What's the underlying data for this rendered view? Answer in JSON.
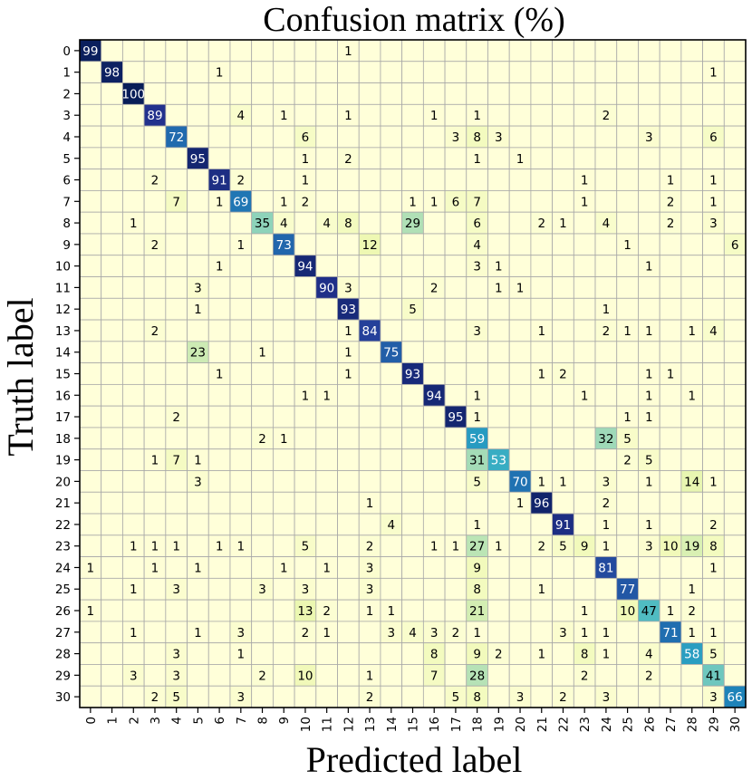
{
  "chart_data": {
    "type": "heatmap",
    "title": "Confusion matrix (%)",
    "xlabel": "Predicted label",
    "ylabel": "Truth label",
    "x_ticks": [
      "0",
      "1",
      "2",
      "3",
      "4",
      "5",
      "6",
      "7",
      "8",
      "9",
      "10",
      "11",
      "12",
      "13",
      "14",
      "15",
      "16",
      "17",
      "18",
      "19",
      "20",
      "21",
      "22",
      "23",
      "24",
      "25",
      "26",
      "27",
      "28",
      "29",
      "30"
    ],
    "y_ticks": [
      "0",
      "1",
      "2",
      "3",
      "4",
      "5",
      "6",
      "7",
      "8",
      "9",
      "10",
      "11",
      "12",
      "13",
      "14",
      "15",
      "16",
      "17",
      "18",
      "19",
      "20",
      "21",
      "22",
      "23",
      "24",
      "25",
      "26",
      "27",
      "28",
      "29",
      "30"
    ],
    "grid": true,
    "colormap": "YlGnBu",
    "value_range": [
      0,
      100
    ],
    "cells": [
      {
        "row": 0,
        "col": 0,
        "value": 99
      },
      {
        "row": 0,
        "col": 12,
        "value": 1
      },
      {
        "row": 1,
        "col": 1,
        "value": 98
      },
      {
        "row": 1,
        "col": 6,
        "value": 1
      },
      {
        "row": 1,
        "col": 29,
        "value": 1
      },
      {
        "row": 2,
        "col": 2,
        "value": 100
      },
      {
        "row": 3,
        "col": 3,
        "value": 89
      },
      {
        "row": 3,
        "col": 7,
        "value": 4
      },
      {
        "row": 3,
        "col": 9,
        "value": 1
      },
      {
        "row": 3,
        "col": 12,
        "value": 1
      },
      {
        "row": 3,
        "col": 16,
        "value": 1
      },
      {
        "row": 3,
        "col": 18,
        "value": 1
      },
      {
        "row": 3,
        "col": 24,
        "value": 2
      },
      {
        "row": 4,
        "col": 4,
        "value": 72
      },
      {
        "row": 4,
        "col": 10,
        "value": 6
      },
      {
        "row": 4,
        "col": 17,
        "value": 3
      },
      {
        "row": 4,
        "col": 18,
        "value": 8
      },
      {
        "row": 4,
        "col": 19,
        "value": 3
      },
      {
        "row": 4,
        "col": 26,
        "value": 3
      },
      {
        "row": 4,
        "col": 29,
        "value": 6
      },
      {
        "row": 5,
        "col": 5,
        "value": 95
      },
      {
        "row": 5,
        "col": 10,
        "value": 1
      },
      {
        "row": 5,
        "col": 12,
        "value": 2
      },
      {
        "row": 5,
        "col": 18,
        "value": 1
      },
      {
        "row": 5,
        "col": 20,
        "value": 1
      },
      {
        "row": 6,
        "col": 3,
        "value": 2
      },
      {
        "row": 6,
        "col": 6,
        "value": 91
      },
      {
        "row": 6,
        "col": 7,
        "value": 2
      },
      {
        "row": 6,
        "col": 10,
        "value": 1
      },
      {
        "row": 6,
        "col": 23,
        "value": 1
      },
      {
        "row": 6,
        "col": 27,
        "value": 1
      },
      {
        "row": 6,
        "col": 29,
        "value": 1
      },
      {
        "row": 7,
        "col": 4,
        "value": 7
      },
      {
        "row": 7,
        "col": 6,
        "value": 1
      },
      {
        "row": 7,
        "col": 7,
        "value": 69
      },
      {
        "row": 7,
        "col": 9,
        "value": 1
      },
      {
        "row": 7,
        "col": 10,
        "value": 2
      },
      {
        "row": 7,
        "col": 15,
        "value": 1
      },
      {
        "row": 7,
        "col": 16,
        "value": 1
      },
      {
        "row": 7,
        "col": 17,
        "value": 6
      },
      {
        "row": 7,
        "col": 18,
        "value": 7
      },
      {
        "row": 7,
        "col": 23,
        "value": 1
      },
      {
        "row": 7,
        "col": 27,
        "value": 2
      },
      {
        "row": 7,
        "col": 29,
        "value": 1
      },
      {
        "row": 8,
        "col": 2,
        "value": 1
      },
      {
        "row": 8,
        "col": 8,
        "value": 35
      },
      {
        "row": 8,
        "col": 9,
        "value": 4
      },
      {
        "row": 8,
        "col": 11,
        "value": 4
      },
      {
        "row": 8,
        "col": 12,
        "value": 8
      },
      {
        "row": 8,
        "col": 15,
        "value": 29
      },
      {
        "row": 8,
        "col": 18,
        "value": 6
      },
      {
        "row": 8,
        "col": 21,
        "value": 2
      },
      {
        "row": 8,
        "col": 22,
        "value": 1
      },
      {
        "row": 8,
        "col": 24,
        "value": 4
      },
      {
        "row": 8,
        "col": 27,
        "value": 2
      },
      {
        "row": 8,
        "col": 29,
        "value": 3
      },
      {
        "row": 9,
        "col": 3,
        "value": 2
      },
      {
        "row": 9,
        "col": 7,
        "value": 1
      },
      {
        "row": 9,
        "col": 9,
        "value": 73
      },
      {
        "row": 9,
        "col": 13,
        "value": 12
      },
      {
        "row": 9,
        "col": 18,
        "value": 4
      },
      {
        "row": 9,
        "col": 25,
        "value": 1
      },
      {
        "row": 9,
        "col": 30,
        "value": 6
      },
      {
        "row": 10,
        "col": 6,
        "value": 1
      },
      {
        "row": 10,
        "col": 10,
        "value": 94
      },
      {
        "row": 10,
        "col": 18,
        "value": 3
      },
      {
        "row": 10,
        "col": 19,
        "value": 1
      },
      {
        "row": 10,
        "col": 26,
        "value": 1
      },
      {
        "row": 11,
        "col": 5,
        "value": 3
      },
      {
        "row": 11,
        "col": 11,
        "value": 90
      },
      {
        "row": 11,
        "col": 12,
        "value": 3
      },
      {
        "row": 11,
        "col": 16,
        "value": 2
      },
      {
        "row": 11,
        "col": 19,
        "value": 1
      },
      {
        "row": 11,
        "col": 20,
        "value": 1
      },
      {
        "row": 12,
        "col": 5,
        "value": 1
      },
      {
        "row": 12,
        "col": 12,
        "value": 93
      },
      {
        "row": 12,
        "col": 15,
        "value": 5
      },
      {
        "row": 12,
        "col": 24,
        "value": 1
      },
      {
        "row": 13,
        "col": 3,
        "value": 2
      },
      {
        "row": 13,
        "col": 12,
        "value": 1
      },
      {
        "row": 13,
        "col": 13,
        "value": 84
      },
      {
        "row": 13,
        "col": 18,
        "value": 3
      },
      {
        "row": 13,
        "col": 21,
        "value": 1
      },
      {
        "row": 13,
        "col": 24,
        "value": 2
      },
      {
        "row": 13,
        "col": 25,
        "value": 1
      },
      {
        "row": 13,
        "col": 26,
        "value": 1
      },
      {
        "row": 13,
        "col": 28,
        "value": 1
      },
      {
        "row": 13,
        "col": 29,
        "value": 4
      },
      {
        "row": 14,
        "col": 5,
        "value": 23
      },
      {
        "row": 14,
        "col": 8,
        "value": 1
      },
      {
        "row": 14,
        "col": 12,
        "value": 1
      },
      {
        "row": 14,
        "col": 14,
        "value": 75
      },
      {
        "row": 15,
        "col": 6,
        "value": 1
      },
      {
        "row": 15,
        "col": 12,
        "value": 1
      },
      {
        "row": 15,
        "col": 15,
        "value": 93
      },
      {
        "row": 15,
        "col": 21,
        "value": 1
      },
      {
        "row": 15,
        "col": 22,
        "value": 2
      },
      {
        "row": 15,
        "col": 26,
        "value": 1
      },
      {
        "row": 15,
        "col": 27,
        "value": 1
      },
      {
        "row": 16,
        "col": 10,
        "value": 1
      },
      {
        "row": 16,
        "col": 11,
        "value": 1
      },
      {
        "row": 16,
        "col": 16,
        "value": 94
      },
      {
        "row": 16,
        "col": 18,
        "value": 1
      },
      {
        "row": 16,
        "col": 23,
        "value": 1
      },
      {
        "row": 16,
        "col": 26,
        "value": 1
      },
      {
        "row": 16,
        "col": 28,
        "value": 1
      },
      {
        "row": 17,
        "col": 4,
        "value": 2
      },
      {
        "row": 17,
        "col": 17,
        "value": 95
      },
      {
        "row": 17,
        "col": 18,
        "value": 1
      },
      {
        "row": 17,
        "col": 25,
        "value": 1
      },
      {
        "row": 17,
        "col": 26,
        "value": 1
      },
      {
        "row": 18,
        "col": 8,
        "value": 2
      },
      {
        "row": 18,
        "col": 9,
        "value": 1
      },
      {
        "row": 18,
        "col": 18,
        "value": 59
      },
      {
        "row": 18,
        "col": 24,
        "value": 32
      },
      {
        "row": 18,
        "col": 25,
        "value": 5
      },
      {
        "row": 19,
        "col": 3,
        "value": 1
      },
      {
        "row": 19,
        "col": 4,
        "value": 7
      },
      {
        "row": 19,
        "col": 5,
        "value": 1
      },
      {
        "row": 19,
        "col": 18,
        "value": 31
      },
      {
        "row": 19,
        "col": 19,
        "value": 53
      },
      {
        "row": 19,
        "col": 25,
        "value": 2
      },
      {
        "row": 19,
        "col": 26,
        "value": 5
      },
      {
        "row": 20,
        "col": 5,
        "value": 3
      },
      {
        "row": 20,
        "col": 18,
        "value": 5
      },
      {
        "row": 20,
        "col": 20,
        "value": 70
      },
      {
        "row": 20,
        "col": 21,
        "value": 1
      },
      {
        "row": 20,
        "col": 22,
        "value": 1
      },
      {
        "row": 20,
        "col": 24,
        "value": 3
      },
      {
        "row": 20,
        "col": 26,
        "value": 1
      },
      {
        "row": 20,
        "col": 28,
        "value": 14
      },
      {
        "row": 20,
        "col": 29,
        "value": 1
      },
      {
        "row": 21,
        "col": 13,
        "value": 1
      },
      {
        "row": 21,
        "col": 20,
        "value": 1
      },
      {
        "row": 21,
        "col": 21,
        "value": 96
      },
      {
        "row": 21,
        "col": 24,
        "value": 2
      },
      {
        "row": 22,
        "col": 14,
        "value": 4
      },
      {
        "row": 22,
        "col": 18,
        "value": 1
      },
      {
        "row": 22,
        "col": 22,
        "value": 91
      },
      {
        "row": 22,
        "col": 24,
        "value": 1
      },
      {
        "row": 22,
        "col": 26,
        "value": 1
      },
      {
        "row": 22,
        "col": 29,
        "value": 2
      },
      {
        "row": 23,
        "col": 2,
        "value": 1
      },
      {
        "row": 23,
        "col": 3,
        "value": 1
      },
      {
        "row": 23,
        "col": 4,
        "value": 1
      },
      {
        "row": 23,
        "col": 6,
        "value": 1
      },
      {
        "row": 23,
        "col": 7,
        "value": 1
      },
      {
        "row": 23,
        "col": 10,
        "value": 5
      },
      {
        "row": 23,
        "col": 13,
        "value": 2
      },
      {
        "row": 23,
        "col": 16,
        "value": 1
      },
      {
        "row": 23,
        "col": 17,
        "value": 1
      },
      {
        "row": 23,
        "col": 18,
        "value": 27
      },
      {
        "row": 23,
        "col": 19,
        "value": 1
      },
      {
        "row": 23,
        "col": 21,
        "value": 2
      },
      {
        "row": 23,
        "col": 22,
        "value": 5
      },
      {
        "row": 23,
        "col": 23,
        "value": 9
      },
      {
        "row": 23,
        "col": 24,
        "value": 1
      },
      {
        "row": 23,
        "col": 26,
        "value": 3
      },
      {
        "row": 23,
        "col": 27,
        "value": 10
      },
      {
        "row": 23,
        "col": 28,
        "value": 19
      },
      {
        "row": 23,
        "col": 29,
        "value": 8
      },
      {
        "row": 24,
        "col": 0,
        "value": 1
      },
      {
        "row": 24,
        "col": 3,
        "value": 1
      },
      {
        "row": 24,
        "col": 5,
        "value": 1
      },
      {
        "row": 24,
        "col": 9,
        "value": 1
      },
      {
        "row": 24,
        "col": 11,
        "value": 1
      },
      {
        "row": 24,
        "col": 13,
        "value": 3
      },
      {
        "row": 24,
        "col": 18,
        "value": 9
      },
      {
        "row": 24,
        "col": 24,
        "value": 81
      },
      {
        "row": 24,
        "col": 29,
        "value": 1
      },
      {
        "row": 25,
        "col": 2,
        "value": 1
      },
      {
        "row": 25,
        "col": 4,
        "value": 3
      },
      {
        "row": 25,
        "col": 8,
        "value": 3
      },
      {
        "row": 25,
        "col": 10,
        "value": 3
      },
      {
        "row": 25,
        "col": 13,
        "value": 3
      },
      {
        "row": 25,
        "col": 18,
        "value": 8
      },
      {
        "row": 25,
        "col": 21,
        "value": 1
      },
      {
        "row": 25,
        "col": 25,
        "value": 77
      },
      {
        "row": 25,
        "col": 28,
        "value": 1
      },
      {
        "row": 26,
        "col": 0,
        "value": 1
      },
      {
        "row": 26,
        "col": 10,
        "value": 13
      },
      {
        "row": 26,
        "col": 11,
        "value": 2
      },
      {
        "row": 26,
        "col": 13,
        "value": 1
      },
      {
        "row": 26,
        "col": 14,
        "value": 1
      },
      {
        "row": 26,
        "col": 18,
        "value": 21
      },
      {
        "row": 26,
        "col": 23,
        "value": 1
      },
      {
        "row": 26,
        "col": 25,
        "value": 10
      },
      {
        "row": 26,
        "col": 26,
        "value": 47
      },
      {
        "row": 26,
        "col": 27,
        "value": 1
      },
      {
        "row": 26,
        "col": 28,
        "value": 2
      },
      {
        "row": 27,
        "col": 2,
        "value": 1
      },
      {
        "row": 27,
        "col": 5,
        "value": 1
      },
      {
        "row": 27,
        "col": 7,
        "value": 3
      },
      {
        "row": 27,
        "col": 10,
        "value": 2
      },
      {
        "row": 27,
        "col": 11,
        "value": 1
      },
      {
        "row": 27,
        "col": 14,
        "value": 3
      },
      {
        "row": 27,
        "col": 15,
        "value": 4
      },
      {
        "row": 27,
        "col": 16,
        "value": 3
      },
      {
        "row": 27,
        "col": 17,
        "value": 2
      },
      {
        "row": 27,
        "col": 18,
        "value": 1
      },
      {
        "row": 27,
        "col": 22,
        "value": 3
      },
      {
        "row": 27,
        "col": 23,
        "value": 1
      },
      {
        "row": 27,
        "col": 24,
        "value": 1
      },
      {
        "row": 27,
        "col": 27,
        "value": 71
      },
      {
        "row": 27,
        "col": 28,
        "value": 1
      },
      {
        "row": 27,
        "col": 29,
        "value": 1
      },
      {
        "row": 28,
        "col": 4,
        "value": 3
      },
      {
        "row": 28,
        "col": 7,
        "value": 1
      },
      {
        "row": 28,
        "col": 16,
        "value": 8
      },
      {
        "row": 28,
        "col": 18,
        "value": 9
      },
      {
        "row": 28,
        "col": 19,
        "value": 2
      },
      {
        "row": 28,
        "col": 21,
        "value": 1
      },
      {
        "row": 28,
        "col": 23,
        "value": 8
      },
      {
        "row": 28,
        "col": 24,
        "value": 1
      },
      {
        "row": 28,
        "col": 26,
        "value": 4
      },
      {
        "row": 28,
        "col": 28,
        "value": 58
      },
      {
        "row": 28,
        "col": 29,
        "value": 5
      },
      {
        "row": 29,
        "col": 2,
        "value": 3
      },
      {
        "row": 29,
        "col": 4,
        "value": 3
      },
      {
        "row": 29,
        "col": 8,
        "value": 2
      },
      {
        "row": 29,
        "col": 10,
        "value": 10
      },
      {
        "row": 29,
        "col": 13,
        "value": 1
      },
      {
        "row": 29,
        "col": 16,
        "value": 7
      },
      {
        "row": 29,
        "col": 18,
        "value": 28
      },
      {
        "row": 29,
        "col": 23,
        "value": 2
      },
      {
        "row": 29,
        "col": 26,
        "value": 2
      },
      {
        "row": 29,
        "col": 29,
        "value": 41
      },
      {
        "row": 30,
        "col": 3,
        "value": 2
      },
      {
        "row": 30,
        "col": 4,
        "value": 5
      },
      {
        "row": 30,
        "col": 7,
        "value": 3
      },
      {
        "row": 30,
        "col": 13,
        "value": 2
      },
      {
        "row": 30,
        "col": 17,
        "value": 5
      },
      {
        "row": 30,
        "col": 18,
        "value": 8
      },
      {
        "row": 30,
        "col": 20,
        "value": 3
      },
      {
        "row": 30,
        "col": 22,
        "value": 2
      },
      {
        "row": 30,
        "col": 24,
        "value": 3
      },
      {
        "row": 30,
        "col": 29,
        "value": 3
      },
      {
        "row": 30,
        "col": 30,
        "value": 66
      }
    ]
  }
}
